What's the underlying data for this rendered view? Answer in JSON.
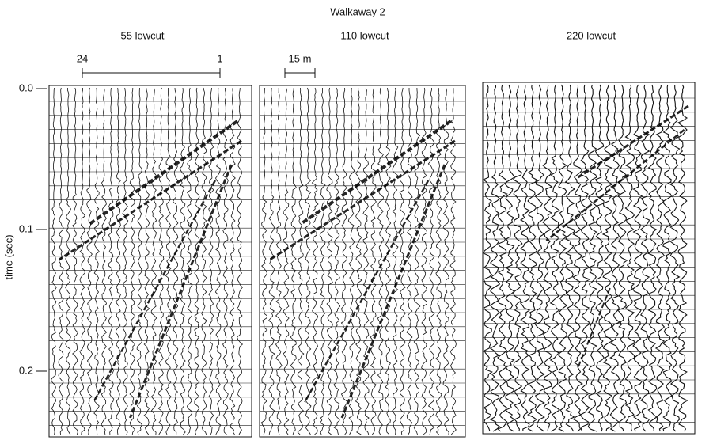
{
  "figure": {
    "title": "Walkaway 2",
    "panels": [
      {
        "title": "55 lowcut"
      },
      {
        "title": "110 lowcut"
      },
      {
        "title": "220 lowcut"
      }
    ],
    "scale_bars": {
      "trace_start": "24",
      "trace_end": "1",
      "distance": "15 m"
    },
    "y_axis": {
      "label": "time (sec)",
      "ticks": [
        "0.0",
        "0.1",
        "0.2"
      ]
    }
  }
}
